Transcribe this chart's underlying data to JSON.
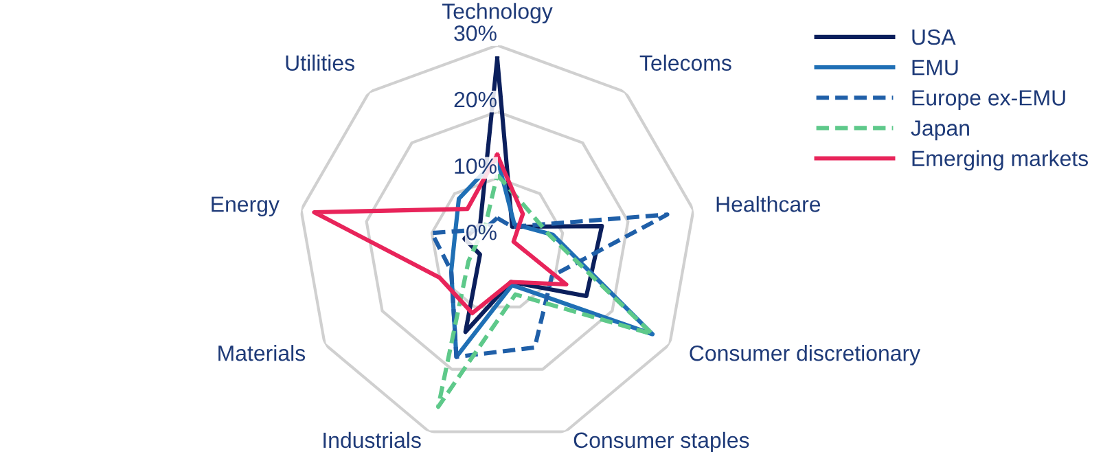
{
  "chart_data": {
    "type": "radar",
    "categories": [
      "Technology",
      "Telecoms",
      "Healthcare",
      "Consumer discretionary",
      "Consumer staples",
      "Industrials",
      "Materials",
      "Energy",
      "Utilities"
    ],
    "ylim": [
      0,
      30
    ],
    "yticks": [
      {
        "value": 0,
        "label": "0%"
      },
      {
        "value": 10,
        "label": "10%"
      },
      {
        "value": 20,
        "label": "20%"
      },
      {
        "value": 30,
        "label": "30%"
      }
    ],
    "grid": true,
    "legend": "top right",
    "series": [
      {
        "name": "USA",
        "color": "#0b1f5c",
        "line_style": "solid",
        "values": [
          28,
          3.5,
          16,
          15.5,
          6,
          14,
          3,
          5,
          4
        ]
      },
      {
        "name": "EMU",
        "color": "#1f6fb5",
        "line_style": "solid",
        "values": [
          13,
          4,
          8.5,
          27,
          6.5,
          18,
          8,
          6.5,
          9
        ]
      },
      {
        "name": "Europe ex-EMU",
        "color": "#1f5fa8",
        "line_style": "dashed",
        "values": [
          4,
          3.5,
          26,
          9.5,
          16.5,
          18,
          8,
          10,
          3
        ]
      },
      {
        "name": "Japan",
        "color": "#5ec98a",
        "line_style": "dashed",
        "values": [
          10.5,
          7,
          8,
          27,
          8,
          26,
          5,
          3,
          3
        ]
      },
      {
        "name": "Emerging markets",
        "color": "#e8245a",
        "line_style": "solid",
        "values": [
          13.5,
          6,
          2.5,
          12,
          6,
          11,
          10,
          28,
          7
        ]
      }
    ]
  }
}
